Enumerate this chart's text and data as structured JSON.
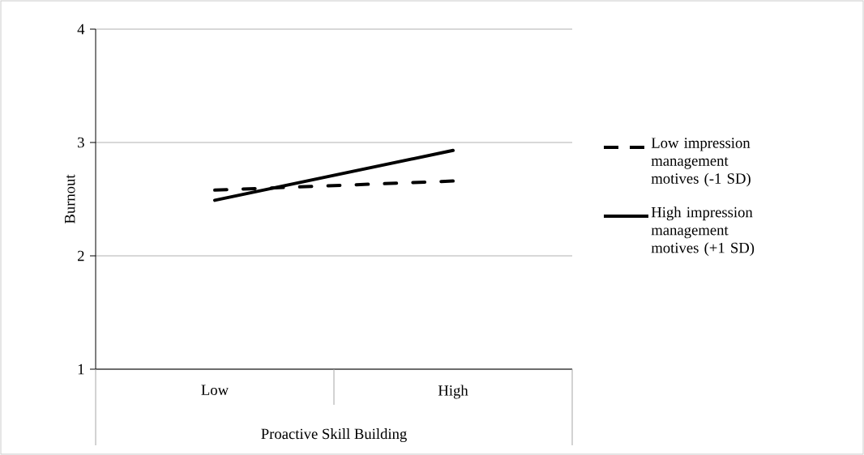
{
  "chart_data": {
    "type": "line",
    "categories": [
      "Low",
      "High"
    ],
    "series": [
      {
        "name": "Low impression management motives (-1 SD)",
        "color": "#000000",
        "line_style": "dashed",
        "values": [
          2.58,
          2.66
        ]
      },
      {
        "name": "High impression management motives (+1 SD)",
        "color": "#000000",
        "line_style": "solid",
        "values": [
          2.49,
          2.93
        ]
      }
    ],
    "xlabel": "Proactive Skill Building",
    "ylabel": "Burnout",
    "ylim": [
      1,
      4
    ],
    "yticks": [
      1,
      2,
      3,
      4
    ],
    "grid": "y",
    "legend": "right"
  }
}
